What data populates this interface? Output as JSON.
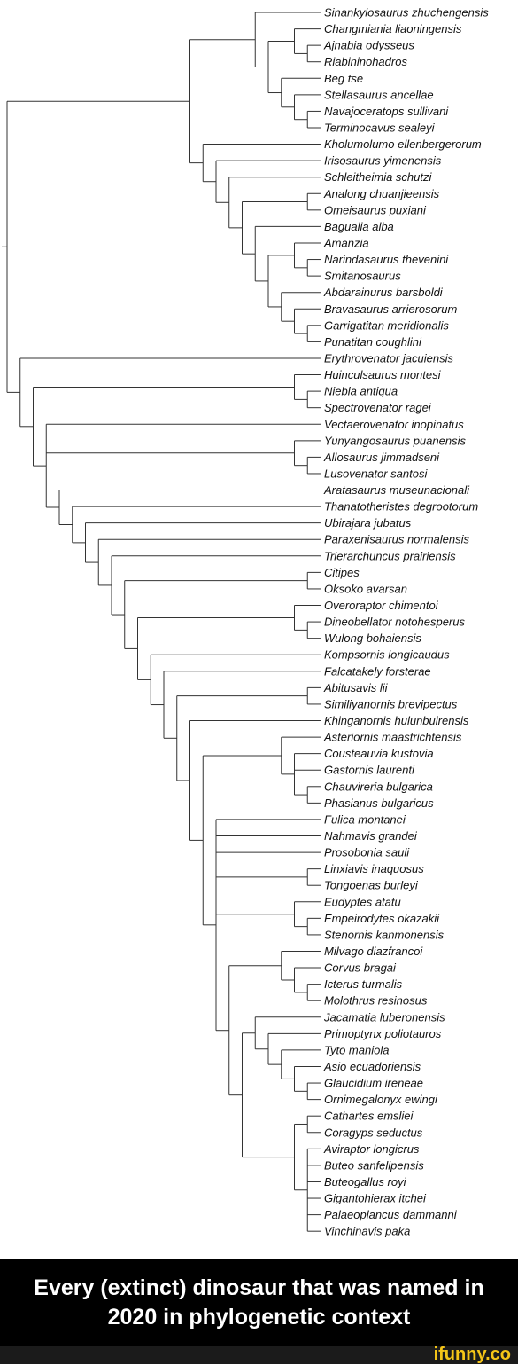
{
  "taxa": [
    "Sinankylosaurus zhuchengensis",
    "Changmiania liaoningensis",
    "Ajnabia odysseus",
    "Riabininohadros",
    "Beg tse",
    "Stellasaurus ancellae",
    "Navajoceratops sullivani",
    "Terminocavus sealeyi",
    "Kholumolumo ellenbergerorum",
    "Irisosaurus yimenensis",
    "Schleitheimia schutzi",
    "Analong chuanjieensis",
    "Omeisaurus puxiani",
    "Bagualia alba",
    "Amanzia",
    "Narindasaurus thevenini",
    "Smitanosaurus",
    "Abdarainurus barsboldi",
    "Bravasaurus arrierosorum",
    "Garrigatitan meridionalis",
    "Punatitan coughlini",
    "Erythrovenator jacuiensis",
    "Huinculsaurus montesi",
    "Niebla antiqua",
    "Spectrovenator ragei",
    "Vectaerovenator inopinatus",
    "Yunyangosaurus puanensis",
    "Allosaurus jimmadseni",
    "Lusovenator santosi",
    "Aratasaurus museunacionali",
    "Thanatotheristes degrootorum",
    "Ubirajara jubatus",
    "Paraxenisaurus normalensis",
    "Trierarchuncus prairiensis",
    "Citipes",
    "Oksoko avarsan",
    "Overoraptor chimentoi",
    "Dineobellator notohesperus",
    "Wulong bohaiensis",
    "Kompsornis longicaudus",
    "Falcatakely forsterae",
    "Abitusavis lii",
    "Similiyanornis brevipectus",
    "Khinganornis hulunbuirensis",
    "Asteriornis maastrichtensis",
    "Cousteauvia kustovia",
    "Gastornis laurenti",
    "Chauvireria bulgarica",
    "Phasianus bulgaricus",
    "Fulica montanei",
    "Nahmavis grandei",
    "Prosobonia sauli",
    "Linxiavis inaquosus",
    "Tongoenas burleyi",
    "Eudyptes atatu",
    "Empeirodytes okazakii",
    "Stenornis kanmonensis",
    "Milvago diazfrancoi",
    "Corvus bragai",
    "Icterus turmalis",
    "Molothrus resinosus",
    "Jacamatia luberonensis",
    "Primoptynx poliotauros",
    "Tyto maniola",
    "Asio ecuadoriensis",
    "Glaucidium ireneae",
    "Ornimegalonyx ewingi",
    "Cathartes emsliei",
    "Coragyps seductus",
    "Aviraptor longicrus",
    "Buteo sanfelipensis",
    "Buteogallus royi",
    "Gigantohierax itchei",
    "Palaeoplancus dammanni",
    "Vinchinavis paka"
  ],
  "tree": [
    [
      [
        [
          0,
          [
            [
              1,
              [
                2,
                3
              ]
            ],
            [
              4,
              [
                5,
                [
                  6,
                  7
                ]
              ]
            ]
          ]
        ]
      ],
      [
        8,
        [
          9,
          [
            10,
            [
              [
                11,
                12
              ],
              [
                13,
                [
                  [
                    14,
                    [
                      15,
                      16
                    ]
                  ],
                  [
                    17,
                    [
                      18,
                      [
                        19,
                        20
                      ]
                    ]
                  ]
                ]
              ]
            ]
          ]
        ]
      ]
    ],
    [
      21,
      [
        [
          22,
          [
            23,
            24
          ]
        ],
        [
          25,
          [
            26,
            [
              27,
              28
            ]
          ],
          [
            29,
            [
              30,
              [
                31,
                [
                  32,
                  [
                    33,
                    [
                      [
                        34,
                        35
                      ],
                      [
                        [
                          36,
                          [
                            37,
                            38
                          ]
                        ],
                        [
                          39,
                          [
                            40,
                            [
                              [
                                41,
                                42
                              ],
                              [
                                43,
                                [
                                  [
                                    44,
                                    [
                                      45,
                                      46,
                                      [
                                        47,
                                        48
                                      ]
                                    ]
                                  ],
                                  [
                                    49,
                                    50,
                                    51,
                                    [
                                      52,
                                      53
                                    ],
                                    [
                                      54,
                                      [
                                        55,
                                        56
                                      ]
                                    ],
                                    [
                                      [
                                        57,
                                        [
                                          58,
                                          [
                                            59,
                                            60
                                          ]
                                        ]
                                      ],
                                      [
                                        [
                                          61,
                                          [
                                            62,
                                            [
                                              63,
                                              [
                                                64,
                                                [
                                                  65,
                                                  66
                                                ]
                                              ]
                                            ]
                                          ]
                                        ],
                                        [
                                          [
                                            67,
                                            68
                                          ],
                                          [
                                            69,
                                            70,
                                            71,
                                            72,
                                            73,
                                            74
                                          ]
                                        ]
                                      ]
                                    ]
                                  ]
                                ]
                              ]
                            ]
                          ]
                        ]
                      ]
                    ]
                  ]
                ]
              ]
            ]
          ]
        ]
      ]
    ]
  ],
  "caption": "Every (extinct) dinosaur that was named in 2020 in  phylogenetic context",
  "brand": "ifunny.co"
}
